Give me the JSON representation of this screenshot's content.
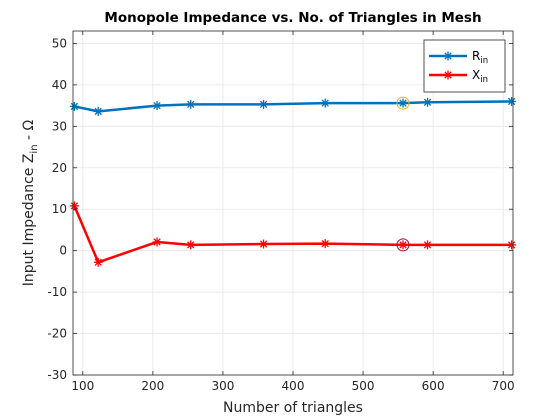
{
  "chart_data": {
    "type": "line",
    "title": "Monopole Impedance vs. No. of Triangles in Mesh",
    "xlabel": "Number of triangles",
    "ylabel_main": "Input Impedance Z",
    "ylabel_sub": "in",
    "ylabel_tail": " - Ω",
    "xlim": [
      86,
      714
    ],
    "ylim": [
      -30,
      53
    ],
    "xticks": [
      100,
      200,
      300,
      400,
      500,
      600,
      700
    ],
    "yticks": [
      -30,
      -20,
      -10,
      0,
      10,
      20,
      30,
      40,
      50
    ],
    "grid": true,
    "legend_position": "top-right",
    "x": [
      88,
      122,
      206,
      254,
      358,
      446,
      557,
      592,
      712
    ],
    "series": [
      {
        "name": "R",
        "name_sub": "in",
        "color": "#0072BD",
        "values": [
          34.8,
          33.6,
          35.0,
          35.3,
          35.3,
          35.6,
          35.6,
          35.8,
          36.0
        ]
      },
      {
        "name": "X",
        "name_sub": "in",
        "color": "#FF0000",
        "values": [
          10.8,
          -2.8,
          2.1,
          1.4,
          1.6,
          1.7,
          1.4,
          1.4,
          1.4
        ]
      }
    ],
    "highlights": [
      {
        "x": 557,
        "y": 35.6,
        "color": "#EDB120"
      },
      {
        "x": 557,
        "y": 1.4,
        "color": "#A2142F"
      }
    ]
  }
}
